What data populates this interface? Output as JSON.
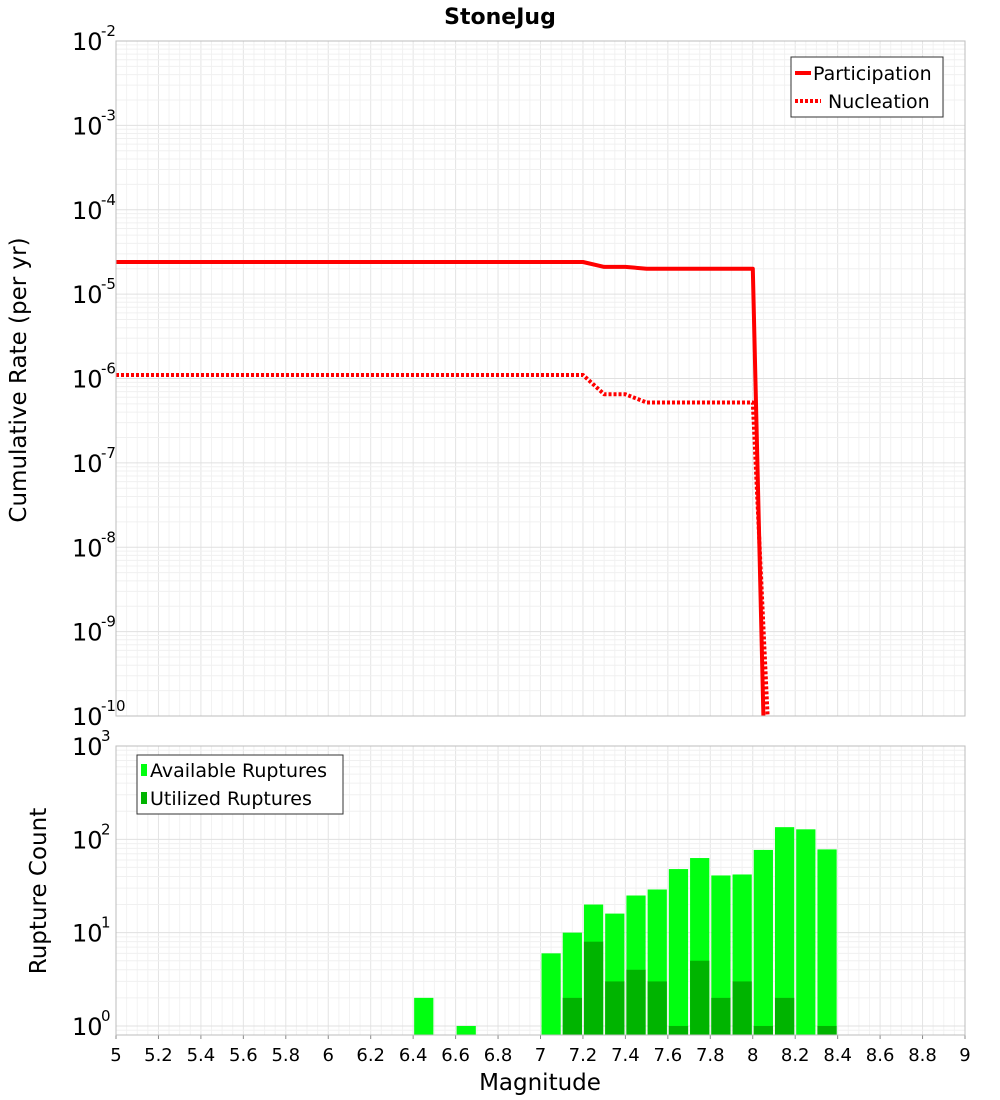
{
  "chart_data": [
    {
      "type": "line",
      "title": "StoneJug",
      "ylabel": "Cumulative Rate (per yr)",
      "xlabel": "",
      "xlim": [
        5,
        9
      ],
      "ylim": [
        1e-10,
        0.01
      ],
      "yscale": "log",
      "ytick_exponents": [
        "-2",
        "-3",
        "-4",
        "-5",
        "-6",
        "-7",
        "-8",
        "-9",
        "-10"
      ],
      "ytick_base": "10",
      "legend": {
        "placement": "top-right"
      },
      "series": [
        {
          "name": "Participation",
          "color": "#ff0000",
          "style": "solid",
          "x": [
            5.0,
            7.2,
            7.3,
            7.4,
            7.5,
            7.6,
            8.0,
            8.05
          ],
          "y": [
            2.4e-05,
            2.4e-05,
            2.1e-05,
            2.1e-05,
            2e-05,
            2e-05,
            2e-05,
            1e-10
          ]
        },
        {
          "name": "Nucleation",
          "color": "#ff0000",
          "style": "dotted",
          "x": [
            5.0,
            7.2,
            7.3,
            7.4,
            7.5,
            7.6,
            8.0,
            8.07
          ],
          "y": [
            1.1e-06,
            1.1e-06,
            6.5e-07,
            6.5e-07,
            5.2e-07,
            5.2e-07,
            5.2e-07,
            1e-10
          ]
        }
      ]
    },
    {
      "type": "bar",
      "title": "",
      "ylabel": "Rupture Count",
      "xlabel": "Magnitude",
      "xlim": [
        5,
        9
      ],
      "ylim": [
        0.8,
        1000
      ],
      "yscale": "log",
      "ytick_exponents": [
        "3",
        "2",
        "1",
        "0"
      ],
      "ytick_base": "10",
      "xticks": [
        "5",
        "5.2",
        "5.4",
        "5.6",
        "5.8",
        "6",
        "6.2",
        "6.4",
        "6.6",
        "6.8",
        "7",
        "7.2",
        "7.4",
        "7.6",
        "7.8",
        "8",
        "8.2",
        "8.4",
        "8.6",
        "8.8",
        "9"
      ],
      "legend": {
        "placement": "top-left"
      },
      "bar_width": 0.1,
      "series": [
        {
          "name": "Available Ruptures",
          "color": "#00ff10",
          "x": [
            6.45,
            6.65,
            7.05,
            7.15,
            7.25,
            7.35,
            7.45,
            7.55,
            7.65,
            7.75,
            7.85,
            7.95,
            8.05,
            8.15,
            8.25,
            8.35
          ],
          "values": [
            2,
            1,
            6,
            10,
            20,
            16,
            25,
            29,
            48,
            63,
            41,
            42,
            77,
            135,
            128,
            78
          ]
        },
        {
          "name": "Utilized Ruptures",
          "color": "#00b400",
          "x": [
            7.15,
            7.25,
            7.35,
            7.45,
            7.55,
            7.65,
            7.75,
            7.85,
            7.95,
            8.05,
            8.15,
            8.35
          ],
          "values": [
            2,
            8,
            3,
            4,
            3,
            1,
            5,
            2,
            3,
            1,
            2,
            1
          ]
        }
      ]
    }
  ]
}
